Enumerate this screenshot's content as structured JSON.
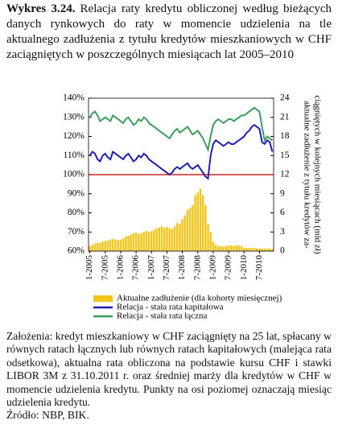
{
  "header": {
    "label": "Wykres 3.24.",
    "text": "Relacja raty kredytu obliczonej według bieżących danych rynkowych do raty w momencie udzielenia na tle aktualnego zadłużenia z tytułu kredytów mieszkaniowych w CHF zaciągniętych w poszczególnych miesiącach lat 2005–2010"
  },
  "chart_data": {
    "type": "bar-line",
    "categories": [
      "1-2005",
      null,
      null,
      null,
      null,
      null,
      "7-2005",
      null,
      null,
      null,
      null,
      null,
      "1-2006",
      null,
      null,
      null,
      null,
      null,
      "7-2006",
      null,
      null,
      null,
      null,
      null,
      "1-2007",
      null,
      null,
      null,
      null,
      null,
      "7-2007",
      null,
      null,
      null,
      null,
      null,
      "1-2008",
      null,
      null,
      null,
      null,
      null,
      "7-2008",
      null,
      null,
      null,
      null,
      null,
      "1-2009",
      null,
      null,
      null,
      null,
      null,
      "7-2009",
      null,
      null,
      null,
      null,
      null,
      "1-2010",
      null,
      null,
      null,
      null,
      null,
      "7-2010",
      null,
      null,
      null,
      null,
      null
    ],
    "series": [
      {
        "name": "Aktualne zadłużenie (dla kohorty miesięcznej)",
        "kind": "bar",
        "axis": "y2",
        "color": "#f0c419",
        "values": [
          0.8,
          1.0,
          1.2,
          1.3,
          1.3,
          1.5,
          1.6,
          1.7,
          1.8,
          1.9,
          1.8,
          1.7,
          1.8,
          2.0,
          2.3,
          2.4,
          2.6,
          2.8,
          2.9,
          2.7,
          2.8,
          3.0,
          3.2,
          3.0,
          3.1,
          3.3,
          3.6,
          3.7,
          3.9,
          3.6,
          3.8,
          3.6,
          3.5,
          3.9,
          4.4,
          4.3,
          5.0,
          5.6,
          6.5,
          6.8,
          7.2,
          8.7,
          9.2,
          9.8,
          8.8,
          7.2,
          4.2,
          3.0,
          1.5,
          1.0,
          0.8,
          0.8,
          0.7,
          0.8,
          0.9,
          0.9,
          0.8,
          0.9,
          0.9,
          0.8,
          0.5,
          0.5,
          0.5,
          0.5,
          0.5,
          0.4,
          0.4,
          0.4,
          0.4,
          0.4,
          0.4,
          0.3
        ]
      },
      {
        "name": "Relacja - stała rata kapitałowa",
        "kind": "line",
        "color": "#1f1fb4",
        "values": [
          110,
          112,
          111,
          108,
          107,
          110,
          111,
          109,
          108,
          112,
          111,
          110,
          109,
          108,
          110,
          111,
          109,
          107,
          108,
          110,
          109,
          111,
          110,
          108,
          107,
          106,
          105,
          104,
          103,
          102,
          101,
          100,
          101,
          103,
          104,
          103,
          104,
          105,
          106,
          104,
          103,
          104,
          105,
          103,
          101,
          99,
          98,
          110,
          116,
          118,
          117,
          116,
          115,
          116,
          117,
          116,
          116,
          117,
          118,
          119,
          120,
          122,
          123,
          125,
          126,
          125,
          124,
          117,
          116,
          118,
          117,
          112
        ]
      },
      {
        "name": "Relacja - stała rata łączna",
        "kind": "line",
        "color": "#3c9e5a",
        "values": [
          130,
          132,
          133,
          131,
          128,
          129,
          130,
          129,
          128,
          131,
          130,
          129,
          128,
          127,
          129,
          130,
          128,
          126,
          127,
          129,
          128,
          130,
          129,
          127,
          126,
          125,
          124,
          123,
          122,
          121,
          120,
          119,
          121,
          123,
          124,
          122,
          123,
          124,
          125,
          123,
          121,
          122,
          123,
          121,
          119,
          116,
          113,
          120,
          126,
          128,
          129,
          128,
          127,
          128,
          129,
          129,
          128,
          129,
          130,
          131,
          131,
          132,
          133,
          134,
          135,
          134,
          133,
          125,
          118,
          120,
          119,
          118
        ]
      }
    ],
    "hline": 100,
    "hline_color": "#cc2222",
    "ylim": [
      60,
      140
    ],
    "yticks": [
      {
        "value": 60,
        "label": "60%"
      },
      {
        "value": 70,
        "label": "70%"
      },
      {
        "value": 80,
        "label": "80%"
      },
      {
        "value": 90,
        "label": "90%"
      },
      {
        "value": 100,
        "label": "100%"
      },
      {
        "value": 110,
        "label": "110%"
      },
      {
        "value": 120,
        "label": "120%"
      },
      {
        "value": 130,
        "label": "130%"
      },
      {
        "value": 140,
        "label": "140%"
      }
    ],
    "y2lim": [
      0,
      24
    ],
    "y2ticks": [
      0,
      3,
      6,
      9,
      12,
      15,
      18,
      21,
      24
    ],
    "y2label": [
      "aktualne zadłużenie z tytułu kredytów za-",
      "ciągniętych w kolejnych miesiącach (mld zł)"
    ]
  },
  "notes": {
    "text": "Założenia: kredyt mieszkaniowy w CHF zaciągnięty na 25 lat, spłacany w równych ratach łącznych lub równych ratach kapitałowych (malejąca rata odsetkowa), aktualna rata obliczona na podstawie kursu CHF i stawki LIBOR 3M z 31.10.2011 r. oraz średniej marży dla kredytów w CHF w momencie udzielenia kredytu. Punkty na osi poziomej oznaczają miesiąc udzielenia kredytu.",
    "source": "Źródło: NBP, BIK."
  }
}
